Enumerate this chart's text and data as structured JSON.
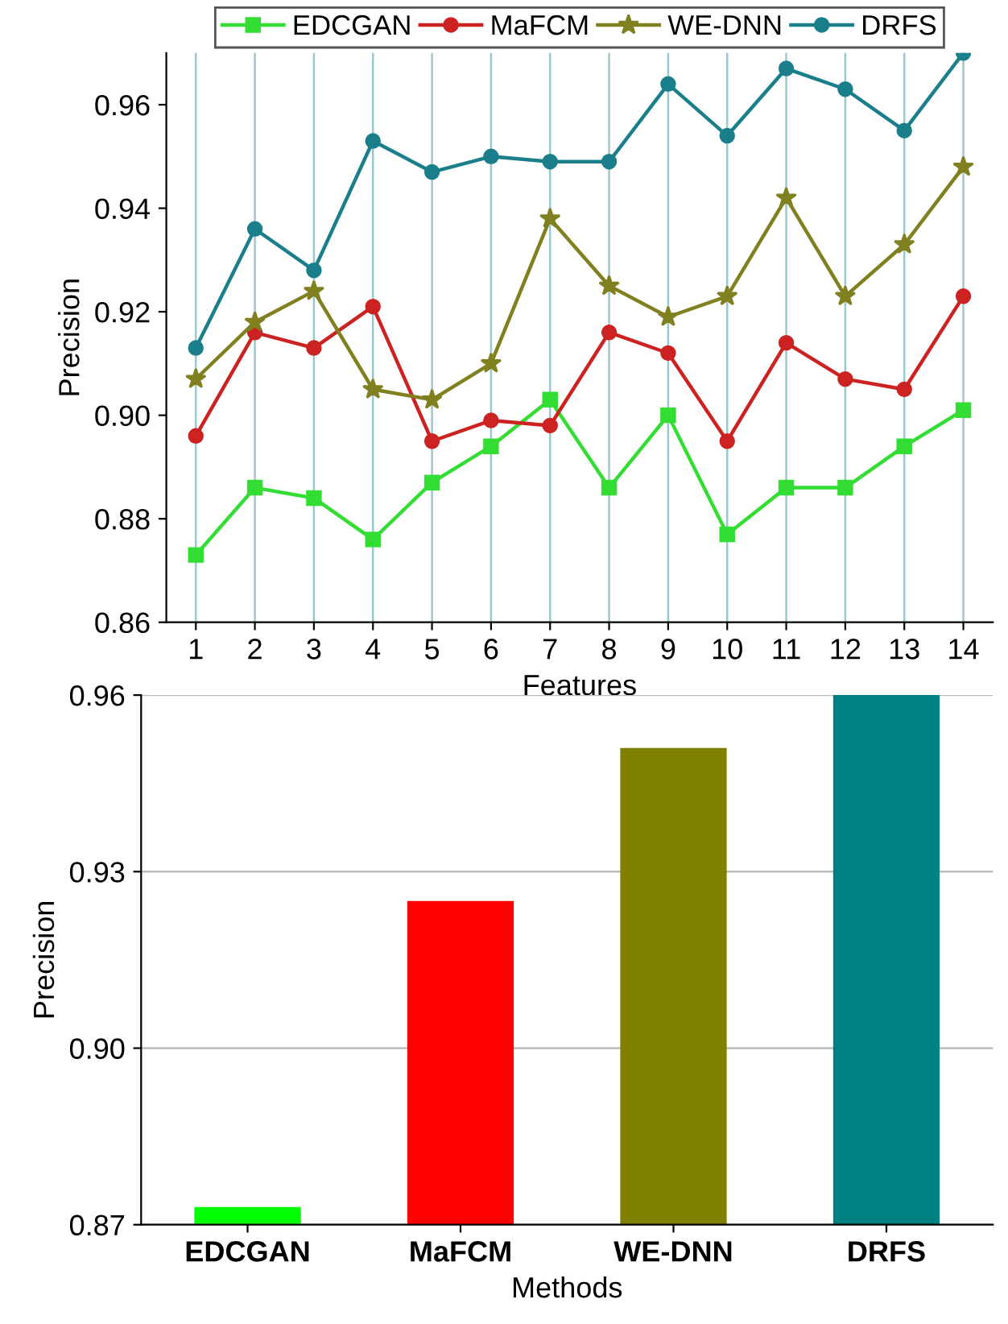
{
  "chart_data": [
    {
      "type": "line",
      "xlabel": "Features",
      "ylabel": "Precision",
      "x": [
        1,
        2,
        3,
        4,
        5,
        6,
        7,
        8,
        9,
        10,
        11,
        12,
        13,
        14
      ],
      "xlim": [
        0.5,
        14.5
      ],
      "xticks": [
        1,
        2,
        3,
        4,
        5,
        6,
        7,
        8,
        9,
        10,
        11,
        12,
        13,
        14
      ],
      "ylim": [
        0.86,
        0.97
      ],
      "yticks": [
        {
          "value": 0.86,
          "label": "0.86"
        },
        {
          "value": 0.88,
          "label": "0.88"
        },
        {
          "value": 0.9,
          "label": "0.90"
        },
        {
          "value": 0.92,
          "label": "0.92"
        },
        {
          "value": 0.94,
          "label": "0.94"
        },
        {
          "value": 0.96,
          "label": "0.96"
        }
      ],
      "grid": "x",
      "legend": "top",
      "series": [
        {
          "name": "EDCGAN",
          "color": "#33dd33",
          "marker": "square",
          "values": [
            0.873,
            0.886,
            0.884,
            0.876,
            0.887,
            0.894,
            0.903,
            0.886,
            0.9,
            0.877,
            0.886,
            0.886,
            0.894,
            0.901
          ]
        },
        {
          "name": "MaFCM",
          "color": "#cc2222",
          "marker": "circle",
          "values": [
            0.896,
            0.916,
            0.913,
            0.921,
            0.895,
            0.899,
            0.898,
            0.916,
            0.912,
            0.895,
            0.914,
            0.907,
            0.905,
            0.923
          ]
        },
        {
          "name": "WE-DNN",
          "color": "#808020",
          "marker": "star",
          "values": [
            0.907,
            0.918,
            0.924,
            0.905,
            0.903,
            0.91,
            0.938,
            0.925,
            0.919,
            0.923,
            0.942,
            0.923,
            0.933,
            0.948
          ]
        },
        {
          "name": "DRFS",
          "color": "#1a7f8a",
          "marker": "circle",
          "values": [
            0.913,
            0.936,
            0.928,
            0.953,
            0.947,
            0.95,
            0.949,
            0.949,
            0.964,
            0.954,
            0.967,
            0.963,
            0.955,
            0.97
          ]
        }
      ]
    },
    {
      "type": "bar",
      "xlabel": "Methods",
      "ylabel": "Precision",
      "categories": [
        "EDCGAN",
        "MaFCM",
        "WE-DNN",
        "DRFS"
      ],
      "values": [
        0.873,
        0.925,
        0.951,
        0.96
      ],
      "colors": [
        "#00ff00",
        "#ff0000",
        "#808000",
        "#008080"
      ],
      "ylim": [
        0.87,
        0.96
      ],
      "yticks": [
        {
          "value": 0.87,
          "label": "0.87"
        },
        {
          "value": 0.9,
          "label": "0.90"
        },
        {
          "value": 0.93,
          "label": "0.93"
        },
        {
          "value": 0.96,
          "label": "0.96"
        }
      ],
      "grid": "y"
    }
  ]
}
